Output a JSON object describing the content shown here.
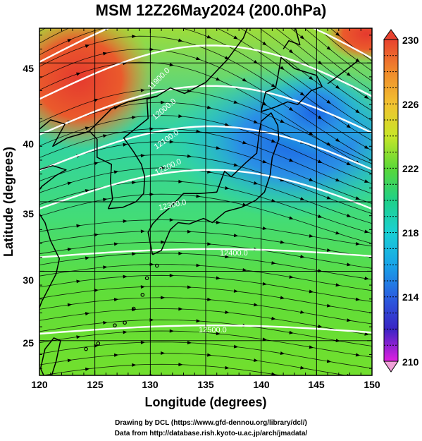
{
  "header": {
    "title": "MSM 12Z26May2024 (200.0hPa)"
  },
  "axes": {
    "xlabel": "Longitude (degrees)",
    "ylabel": "Latitude  (degrees)",
    "xticks": [
      "120",
      "125",
      "130",
      "135",
      "140",
      "145",
      "150"
    ],
    "yticks": [
      "25",
      "30",
      "35",
      "40",
      "45"
    ]
  },
  "colorbar": {
    "labels": [
      "230",
      "226",
      "222",
      "218",
      "214",
      "210"
    ],
    "colors": [
      "#e8422f",
      "#f2c230",
      "#a8e030",
      "#21d86a",
      "#1ad0d4",
      "#2a7be6",
      "#2b2fc0",
      "#e020e0"
    ]
  },
  "contours": {
    "labels": [
      "12500.0",
      "12400.0",
      "12300.0",
      "12200.0",
      "12100.0",
      "12000.0",
      "11900.0"
    ]
  },
  "footer": {
    "credit1": "Drawing by DCL (https://www.gfd-dennou.org/library/dcl/)",
    "credit2": "Data from http://database.rish.kyoto-u.ac.jp/arch/jmadata/"
  },
  "chart_data": {
    "type": "heatmap",
    "title": "MSM 12Z26May2024 (200.0hPa)",
    "xlabel": "Longitude (degrees)",
    "ylabel": "Latitude  (degrees)",
    "xlim": [
      120,
      150
    ],
    "ylim": [
      22.5,
      47.5
    ],
    "colorbar_range": [
      210,
      230
    ],
    "colorbar_ticks": [
      230,
      226,
      222,
      218,
      214,
      210
    ],
    "contour_labels": [
      12500.0,
      12400.0,
      12300.0,
      12200.0,
      12100.0,
      12000.0,
      11900.0
    ],
    "overlays": [
      "streamlines",
      "geopotential height contours",
      "coastlines"
    ],
    "grid": true
  }
}
